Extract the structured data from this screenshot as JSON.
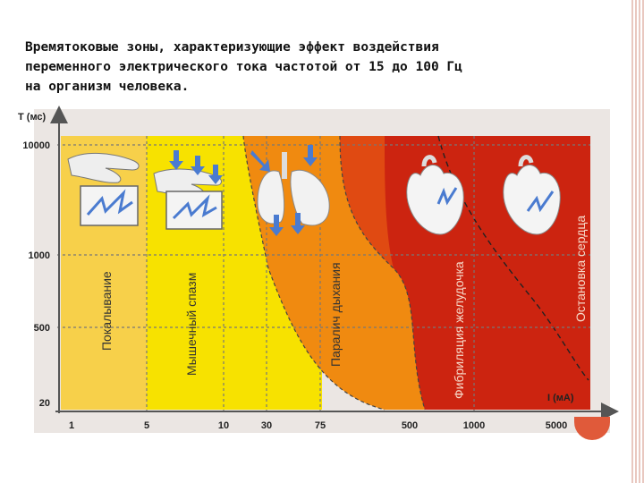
{
  "title": "Времятоковые зоны, характеризующие эффект воздействия\nпеременного электрического тока частотой от 15 до 100 Гц\nна организм человека.",
  "chart_data": {
    "type": "area",
    "xlabel": "I (мА)",
    "ylabel": "T (мс)",
    "x_ticks": [
      "1",
      "5",
      "10",
      "30",
      "75",
      "500",
      "1000",
      "5000"
    ],
    "y_ticks": [
      "10000",
      "1000",
      "500",
      "20"
    ],
    "zones": [
      {
        "name": "Покалывание",
        "color": "#f7d04a"
      },
      {
        "name": "Мышечный спазм",
        "color": "#f7e200"
      },
      {
        "name": "Паралич дыхания",
        "color": "#f08a10"
      },
      {
        "name": "Фибриляция желудочка",
        "color": "#e04a12"
      },
      {
        "name": "Остановка сердца",
        "color": "#c81c0c"
      }
    ],
    "colors": {
      "axis": "#555555",
      "grid": "#777777",
      "background": "#e9e4e1"
    }
  }
}
